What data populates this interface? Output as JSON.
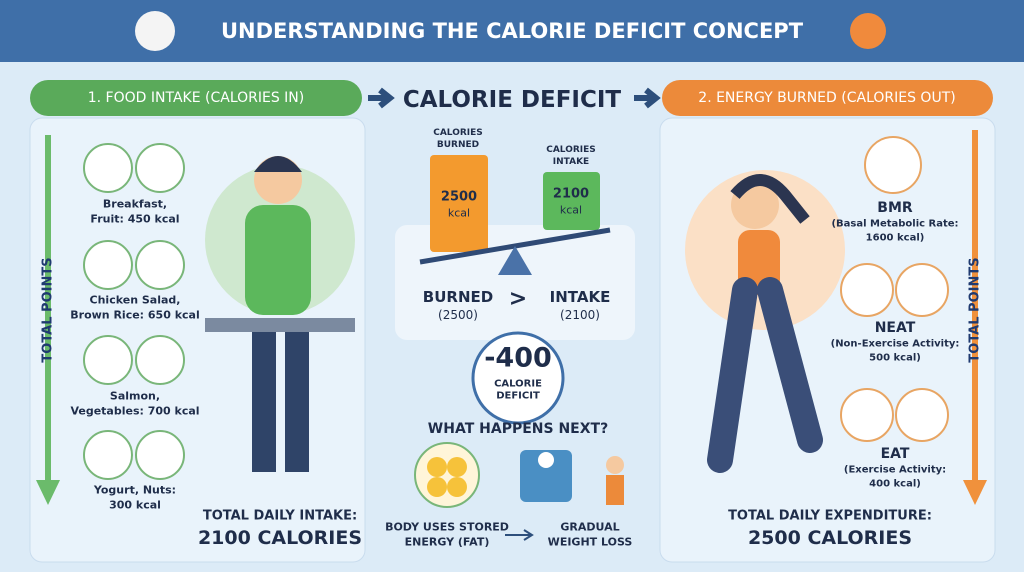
{
  "header": {
    "title": "UNDERSTANDING THE CALORIE DEFICIT CONCEPT"
  },
  "left": {
    "heading": "1. FOOD INTAKE (CALORIES IN)",
    "side_label": "TOTAL POINTS",
    "meals": [
      {
        "lines": [
          "Breakfast,",
          "Fruit: 450 kcal"
        ]
      },
      {
        "lines": [
          "Chicken Salad,",
          "Brown Rice: 650 kcal"
        ]
      },
      {
        "lines": [
          "Salmon,",
          "Vegetables: 700 kcal"
        ]
      },
      {
        "lines": [
          "Yogurt, Nuts:",
          "300 kcal"
        ]
      }
    ],
    "total": [
      "TOTAL DAILY INTAKE:",
      "2100 CALORIES"
    ]
  },
  "center": {
    "heading": "CALORIE DEFICIT",
    "burned_label": [
      "CALORIES",
      "BURNED"
    ],
    "burned_value": [
      "2500",
      "kcal"
    ],
    "intake_label": [
      "CALORIES",
      "INTAKE"
    ],
    "intake_value": [
      "2100",
      "kcal"
    ],
    "comparison": {
      "left": [
        "BURNED",
        "(2500)"
      ],
      "symbol": ">",
      "right": [
        "INTAKE",
        "(2100)"
      ]
    },
    "deficit": {
      "value": "-400",
      "label": [
        "CALORIE",
        "DEFICIT"
      ]
    },
    "next": {
      "heading": "WHAT HAPPENS NEXT?",
      "steps": [
        [
          "BODY USES STORED",
          "ENERGY (FAT)"
        ],
        [
          "GRADUAL",
          "WEIGHT LOSS"
        ]
      ]
    }
  },
  "right": {
    "heading": "2. ENERGY BURNED (CALORIES OUT)",
    "side_label": "TOTAL POINTS",
    "items": [
      {
        "title": "BMR",
        "lines": [
          "(Basal Metabolic Rate:",
          "1600 kcal)"
        ]
      },
      {
        "title": "NEAT",
        "lines": [
          "(Non-Exercise Activity:",
          "500 kcal)"
        ]
      },
      {
        "title": "EAT",
        "lines": [
          "(Exercise Activity:",
          "400 kcal)"
        ]
      }
    ],
    "total": [
      "TOTAL DAILY EXPENDITURE:",
      "2500 CALORIES"
    ]
  }
}
